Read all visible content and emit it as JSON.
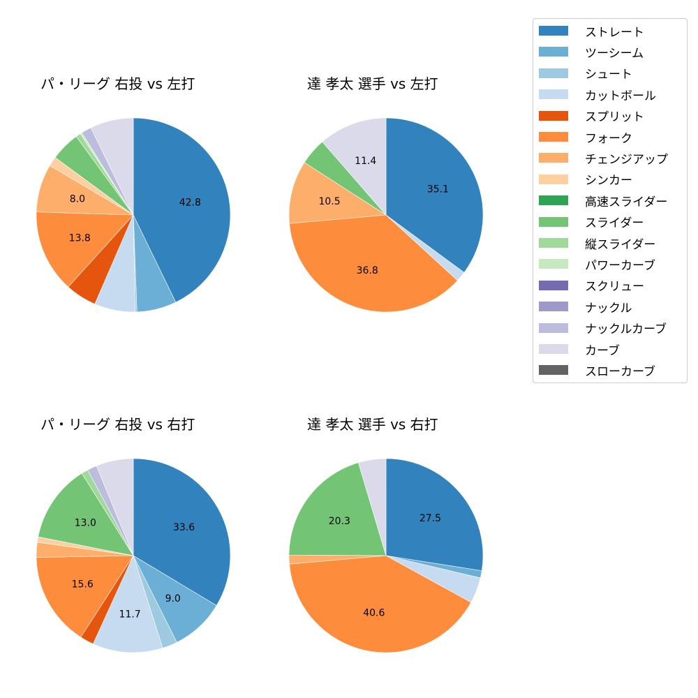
{
  "chart_data": [
    {
      "type": "pie",
      "title": "パ・リーグ 右投 vs 左打",
      "categories": [
        "ストレート",
        "ツーシーム",
        "シュート",
        "カットボール",
        "スプリット",
        "フォーク",
        "チェンジアップ",
        "シンカー",
        "スライダー",
        "縦スライダー",
        "パワーカーブ",
        "ナックルカーブ",
        "カーブ"
      ],
      "values": [
        42.8,
        6.6,
        0.3,
        6.8,
        5.2,
        13.8,
        8.0,
        1.6,
        4.9,
        0.8,
        0.3,
        1.7,
        7.2
      ],
      "labels_shown": [
        "42.8",
        "13.8",
        "8.0"
      ]
    },
    {
      "type": "pie",
      "title": "達 孝太 選手 vs 左打",
      "categories": [
        "ストレート",
        "カットボール",
        "フォーク",
        "チェンジアップ",
        "スライダー",
        "カーブ"
      ],
      "values": [
        35.1,
        1.7,
        36.8,
        10.5,
        4.5,
        11.4
      ],
      "labels_shown": [
        "35.1",
        "36.8",
        "10.5",
        "11.4"
      ]
    },
    {
      "type": "pie",
      "title": "パ・リーグ 右投 vs 右打",
      "categories": [
        "ストレート",
        "ツーシーム",
        "シュート",
        "カットボール",
        "スプリット",
        "フォーク",
        "チェンジアップ",
        "シンカー",
        "スライダー",
        "縦スライダー",
        "ナックルカーブ",
        "カーブ"
      ],
      "values": [
        33.6,
        9.0,
        2.5,
        11.7,
        2.3,
        15.6,
        2.5,
        0.9,
        13.0,
        1.1,
        1.6,
        6.2
      ],
      "labels_shown": [
        "33.6",
        "9.0",
        "11.7",
        "15.6",
        "13.0"
      ]
    },
    {
      "type": "pie",
      "title": "達 孝太 選手 vs 右打",
      "categories": [
        "ストレート",
        "ツーシーム",
        "カットボール",
        "フォーク",
        "チェンジアップ",
        "スライダー",
        "カーブ"
      ],
      "values": [
        27.5,
        1.2,
        4.3,
        40.6,
        1.5,
        20.3,
        4.6
      ],
      "labels_shown": [
        "27.5",
        "40.6",
        "20.3"
      ]
    }
  ],
  "legend": {
    "position": "upper right",
    "items": [
      {
        "label": "ストレート",
        "color": "#3182bd"
      },
      {
        "label": "ツーシーム",
        "color": "#6baed6"
      },
      {
        "label": "シュート",
        "color": "#9ecae1"
      },
      {
        "label": "カットボール",
        "color": "#c6dbef"
      },
      {
        "label": "スプリット",
        "color": "#e6550d"
      },
      {
        "label": "フォーク",
        "color": "#fd8d3c"
      },
      {
        "label": "チェンジアップ",
        "color": "#fdae6b"
      },
      {
        "label": "シンカー",
        "color": "#fdd0a2"
      },
      {
        "label": "高速スライダー",
        "color": "#31a354"
      },
      {
        "label": "スライダー",
        "color": "#74c476"
      },
      {
        "label": "縦スライダー",
        "color": "#a1d99b"
      },
      {
        "label": "パワーカーブ",
        "color": "#c7e9c0"
      },
      {
        "label": "スクリュー",
        "color": "#756bb1"
      },
      {
        "label": "ナックル",
        "color": "#9e9ac8"
      },
      {
        "label": "ナックルカーブ",
        "color": "#bcbddc"
      },
      {
        "label": "カーブ",
        "color": "#dadaeb"
      },
      {
        "label": "スローカーブ",
        "color": "#636363"
      }
    ]
  }
}
